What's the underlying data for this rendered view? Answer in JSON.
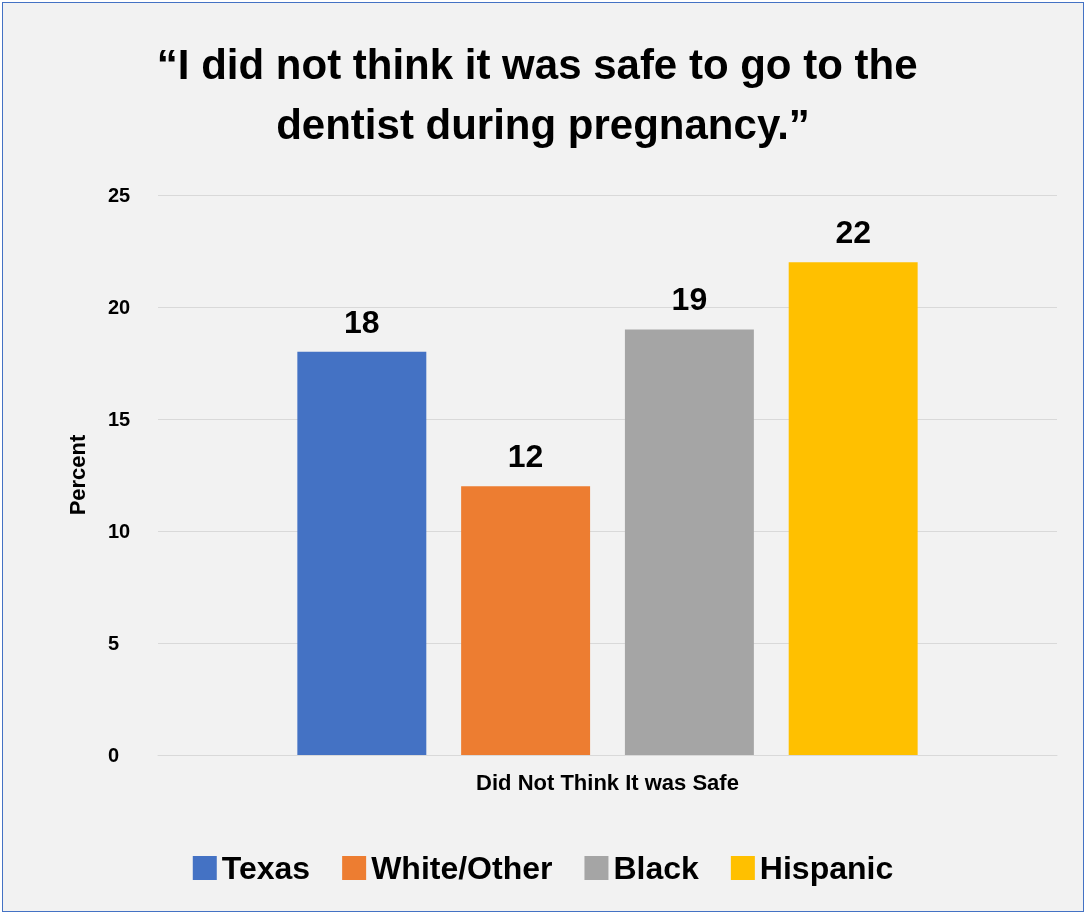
{
  "chart_data": {
    "type": "bar",
    "title": "“I did not think it was safe to go to the dentist during pregnancy.”",
    "ylabel": "Percent",
    "categories": [
      "Did Not Think It was Safe"
    ],
    "series": [
      {
        "name": "Texas",
        "color": "#4472c4",
        "values": [
          18
        ]
      },
      {
        "name": "White/Other",
        "color": "#ed7d31",
        "values": [
          12
        ]
      },
      {
        "name": "Black",
        "color": "#a5a5a5",
        "values": [
          19
        ]
      },
      {
        "name": "Hispanic",
        "color": "#ffc000",
        "values": [
          22
        ]
      }
    ],
    "ylim": [
      0,
      25
    ],
    "yticks": [
      0,
      5,
      10,
      15,
      20,
      25
    ],
    "grid": "y",
    "legend": "bottom",
    "data_labels": true
  }
}
